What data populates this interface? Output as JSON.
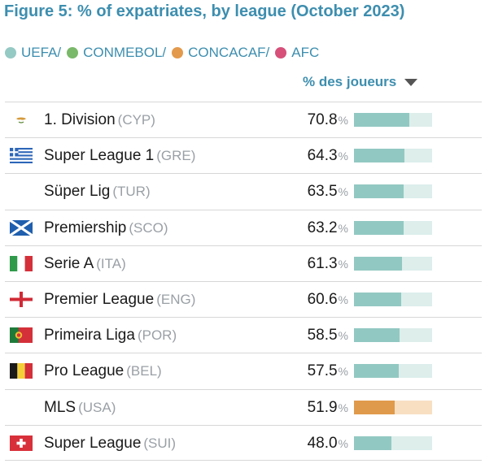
{
  "title": "Figure 5: % of expatriates, by league (October 2023)",
  "legend": [
    {
      "label": "UEFA/",
      "color": "#95c9c4"
    },
    {
      "label": "CONMEBOL/",
      "color": "#7ab86a"
    },
    {
      "label": "CONCACAF/",
      "color": "#e39a4c"
    },
    {
      "label": "AFC",
      "color": "#d6507a"
    }
  ],
  "column_header": "% des joueurs",
  "percent_sign": "%",
  "colors": {
    "uefa_fill": "#92c8c2",
    "uefa_track": "#ddeeeb",
    "concacaf_fill": "#e09a4b",
    "concacaf_track": "#f8dfc2",
    "accent": "#3d8eaf"
  },
  "chart_data": {
    "type": "bar",
    "title": "Figure 5: % of expatriates, by league (October 2023)",
    "xlim": [
      0,
      100
    ],
    "categories": [
      "1. Division",
      "Super League 1",
      "Süper Lig",
      "Premiership",
      "Serie A",
      "Premier League",
      "Primeira Liga",
      "Pro League",
      "MLS",
      "Super League"
    ],
    "values": [
      70.8,
      64.3,
      63.5,
      63.2,
      61.3,
      60.6,
      58.5,
      57.5,
      51.9,
      48.0
    ],
    "rows": [
      {
        "league": "1. Division",
        "code": "(CYP)",
        "value": 70.8,
        "value_text": "70.8",
        "confederation": "UEFA",
        "flag": "cyprus-flag-icon"
      },
      {
        "league": "Super League 1",
        "code": "(GRE)",
        "value": 64.3,
        "value_text": "64.3",
        "confederation": "UEFA",
        "flag": "greece-flag-icon"
      },
      {
        "league": "Süper Lig",
        "code": "(TUR)",
        "value": 63.5,
        "value_text": "63.5",
        "confederation": "UEFA",
        "flag": ""
      },
      {
        "league": "Premiership",
        "code": "(SCO)",
        "value": 63.2,
        "value_text": "63.2",
        "confederation": "UEFA",
        "flag": "scotland-flag-icon"
      },
      {
        "league": "Serie A",
        "code": "(ITA)",
        "value": 61.3,
        "value_text": "61.3",
        "confederation": "UEFA",
        "flag": "italy-flag-icon"
      },
      {
        "league": "Premier League",
        "code": "(ENG)",
        "value": 60.6,
        "value_text": "60.6",
        "confederation": "UEFA",
        "flag": "england-flag-icon"
      },
      {
        "league": "Primeira Liga",
        "code": "(POR)",
        "value": 58.5,
        "value_text": "58.5",
        "confederation": "UEFA",
        "flag": "portugal-flag-icon"
      },
      {
        "league": "Pro League",
        "code": "(BEL)",
        "value": 57.5,
        "value_text": "57.5",
        "confederation": "UEFA",
        "flag": "belgium-flag-icon"
      },
      {
        "league": "MLS",
        "code": "(USA)",
        "value": 51.9,
        "value_text": "51.9",
        "confederation": "CONCACAF",
        "flag": ""
      },
      {
        "league": "Super League",
        "code": "(SUI)",
        "value": 48.0,
        "value_text": "48.0",
        "confederation": "UEFA",
        "flag": "switzerland-flag-icon"
      }
    ]
  }
}
